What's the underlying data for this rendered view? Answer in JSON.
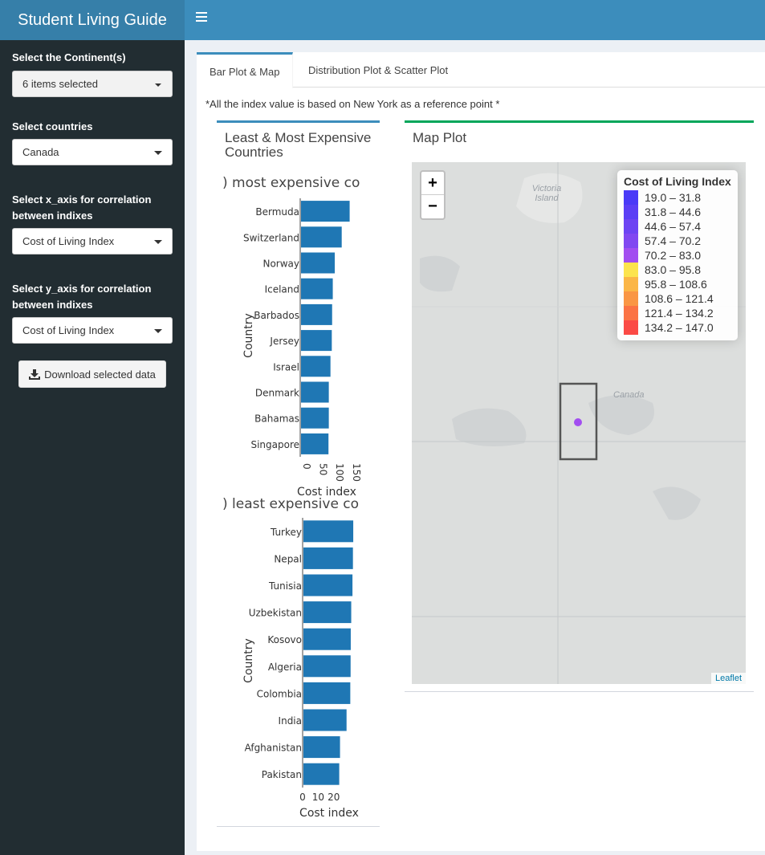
{
  "app": {
    "title": "Student Living Guide"
  },
  "sidebar": {
    "continent_label": "Select the Continent(s)",
    "continent_value": "6 items selected",
    "countries_label": "Select countries",
    "countries_value": "Canada",
    "xaxis_label": "Select x_axis for correlation between indixes",
    "xaxis_value": "Cost of Living Index",
    "yaxis_label": "Select y_axis for correlation between indixes",
    "yaxis_value": "Cost of Living Index",
    "download_label": "Download selected data"
  },
  "tabs": [
    {
      "label": "Bar Plot & Map",
      "active": true
    },
    {
      "label": "Distribution Plot & Scatter Plot",
      "active": false
    }
  ],
  "note": "*All the index value is based on New York as a reference point *",
  "left_box": {
    "title": "Least & Most Expensive Countries"
  },
  "right_box": {
    "title": "Map Plot"
  },
  "chart_data": [
    {
      "type": "bar",
      "orientation": "horizontal",
      "title": ") most expensive co",
      "categories": [
        "Bermuda",
        "Switzerland",
        "Norway",
        "Iceland",
        "Barbados",
        "Jersey",
        "Israel",
        "Denmark",
        "Bahamas",
        "Singapore"
      ],
      "values": [
        147,
        123,
        102,
        96,
        94,
        93,
        89,
        84,
        84,
        83
      ],
      "xlabel": "Cost index",
      "ylabel": "Country",
      "xlim": [
        0,
        165
      ],
      "ticks": [
        0,
        50,
        100,
        150
      ],
      "color": "#1f77b4"
    },
    {
      "type": "bar",
      "orientation": "horizontal",
      "title": ") least expensive co",
      "categories": [
        "Turkey",
        "Nepal",
        "Tunisia",
        "Uzbekistan",
        "Kosovo",
        "Algeria",
        "Colombia",
        "India",
        "Afghanistan",
        "Pakistan"
      ],
      "values": [
        32,
        31.8,
        31.5,
        30.7,
        30.4,
        30.3,
        30.1,
        27.7,
        23.5,
        23
      ],
      "xlabel": "Cost index",
      "ylabel": "Country",
      "xlim": [
        0,
        33
      ],
      "ticks": [
        0,
        10,
        20
      ],
      "color": "#1f77b4"
    }
  ],
  "map": {
    "legend_title": "Cost of Living Index",
    "legend": [
      {
        "label": "19.0 – 31.8",
        "color": "#4a3af7"
      },
      {
        "label": "31.8 – 44.6",
        "color": "#5b3ff5"
      },
      {
        "label": "44.6 – 57.4",
        "color": "#6d44f3"
      },
      {
        "label": "57.4 – 70.2",
        "color": "#8148f1"
      },
      {
        "label": "70.2 – 83.0",
        "color": "#a24ef0"
      },
      {
        "label": "83.0 – 95.8",
        "color": "#fce44d"
      },
      {
        "label": "95.8 – 108.6",
        "color": "#fbb646"
      },
      {
        "label": "108.6 – 121.4",
        "color": "#fa9644"
      },
      {
        "label": "121.4 – 134.2",
        "color": "#fb7344"
      },
      {
        "label": "134.2 – 147.0",
        "color": "#fb4a45"
      }
    ],
    "labels": {
      "victoria": "Victoria Island",
      "canada": "Canada",
      "attribution": "Leaflet"
    },
    "zoom_in": "+",
    "zoom_out": "−",
    "point_color": "#a24ef0"
  }
}
